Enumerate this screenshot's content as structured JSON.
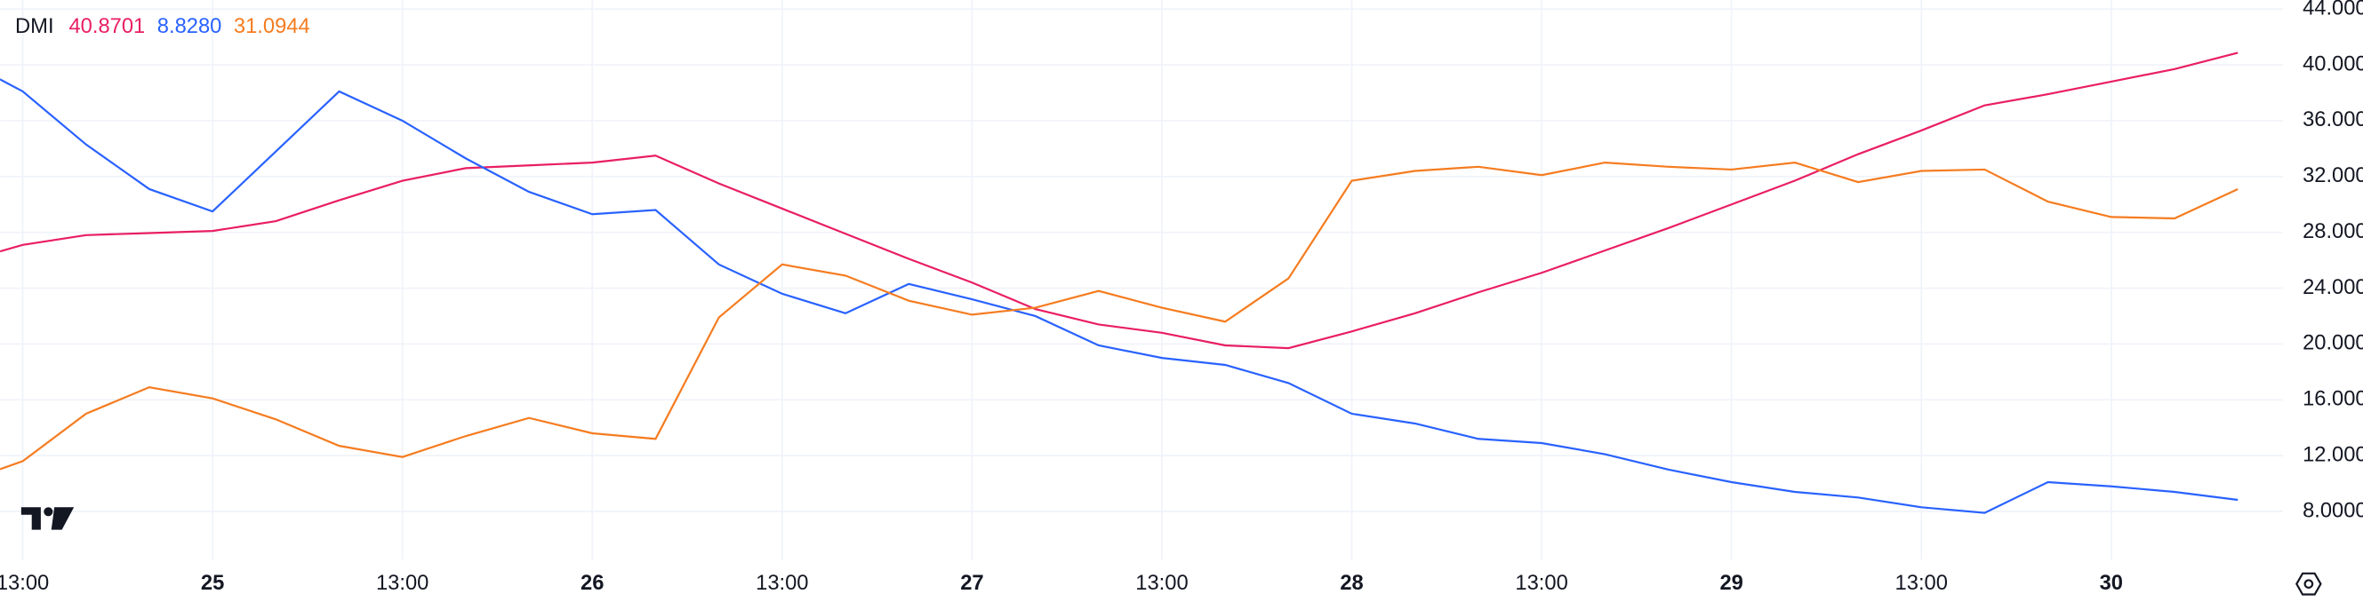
{
  "chart_data": {
    "type": "line",
    "legend_title": "DMI",
    "categories": [
      null,
      "13:00",
      null,
      null,
      "25",
      null,
      null,
      "13:00",
      null,
      null,
      "26",
      null,
      null,
      "13:00",
      null,
      null,
      "27",
      null,
      null,
      "13:00",
      null,
      null,
      "28",
      null,
      null,
      "13:00",
      null,
      null,
      "29",
      null,
      null,
      "13:00",
      null,
      null,
      "30",
      null,
      null
    ],
    "series": [
      {
        "color": "#e91e63",
        "values": [
          25.8,
          27.1,
          27.8,
          27.95,
          28.1,
          28.8,
          30.3,
          31.7,
          32.6,
          32.8,
          33.0,
          33.5,
          31.5,
          29.7,
          27.9,
          26.1,
          24.4,
          22.5,
          21.4,
          20.8,
          19.9,
          19.7,
          20.9,
          22.2,
          23.7,
          25.1,
          26.7,
          28.3,
          30.0,
          31.7,
          33.6,
          35.3,
          37.1,
          37.9,
          38.8,
          39.7,
          40.8701
        ],
        "value_labels": [
          null,
          null,
          null,
          null,
          null,
          null,
          null,
          null,
          null,
          null,
          null,
          null,
          null,
          null,
          null,
          null,
          null,
          null,
          null,
          null,
          null,
          null,
          null,
          null,
          null,
          null,
          null,
          null,
          null,
          null,
          null,
          null,
          null,
          null,
          null,
          null,
          "40.8701"
        ]
      },
      {
        "color": "#2962ff",
        "values": [
          40.5,
          38.1,
          34.3,
          31.1,
          29.5,
          33.8,
          38.1,
          36.0,
          33.3,
          30.9,
          29.3,
          29.6,
          25.7,
          23.6,
          22.2,
          24.3,
          23.2,
          22.0,
          19.9,
          19.0,
          18.5,
          17.2,
          15.0,
          14.3,
          13.2,
          12.9,
          12.1,
          11.0,
          10.1,
          9.4,
          9.0,
          8.3,
          7.9,
          10.1,
          9.8,
          9.4,
          8.828
        ],
        "value_labels": [
          null,
          null,
          null,
          null,
          null,
          null,
          null,
          null,
          null,
          null,
          null,
          null,
          null,
          null,
          null,
          null,
          null,
          null,
          null,
          null,
          null,
          null,
          null,
          null,
          null,
          null,
          null,
          null,
          null,
          null,
          null,
          null,
          null,
          null,
          null,
          null,
          "8.8280"
        ]
      },
      {
        "color": "#f57c20",
        "values": [
          10.0,
          11.6,
          15.0,
          16.9,
          16.1,
          14.6,
          12.7,
          11.9,
          13.4,
          14.7,
          13.6,
          13.2,
          21.9,
          25.7,
          24.9,
          23.1,
          22.1,
          22.6,
          23.8,
          22.6,
          21.6,
          24.7,
          31.7,
          32.4,
          32.7,
          32.1,
          33.0,
          32.7,
          32.5,
          33.0,
          31.6,
          32.4,
          32.5,
          30.2,
          29.1,
          29.0,
          31.0944
        ],
        "value_labels": [
          null,
          null,
          null,
          null,
          null,
          null,
          null,
          null,
          null,
          null,
          null,
          null,
          null,
          null,
          null,
          null,
          null,
          null,
          null,
          null,
          null,
          null,
          null,
          null,
          null,
          null,
          null,
          null,
          null,
          null,
          null,
          null,
          null,
          null,
          null,
          null,
          "31.0944"
        ]
      }
    ],
    "ylim": [
      4.53,
      44.65
    ],
    "yticks": [
      {
        "value": 8,
        "label": "8.0000"
      },
      {
        "value": 12,
        "label": "12.0000"
      },
      {
        "value": 16,
        "label": "16.0000"
      },
      {
        "value": 20,
        "label": "20.0000"
      },
      {
        "value": 24,
        "label": "24.0000"
      },
      {
        "value": 28,
        "label": "28.0000"
      },
      {
        "value": 32,
        "label": "32.0000"
      },
      {
        "value": 36,
        "label": "36.0000"
      },
      {
        "value": 40,
        "label": "40.0000"
      },
      {
        "value": 44,
        "label": "44.0000"
      }
    ],
    "grid": true
  }
}
